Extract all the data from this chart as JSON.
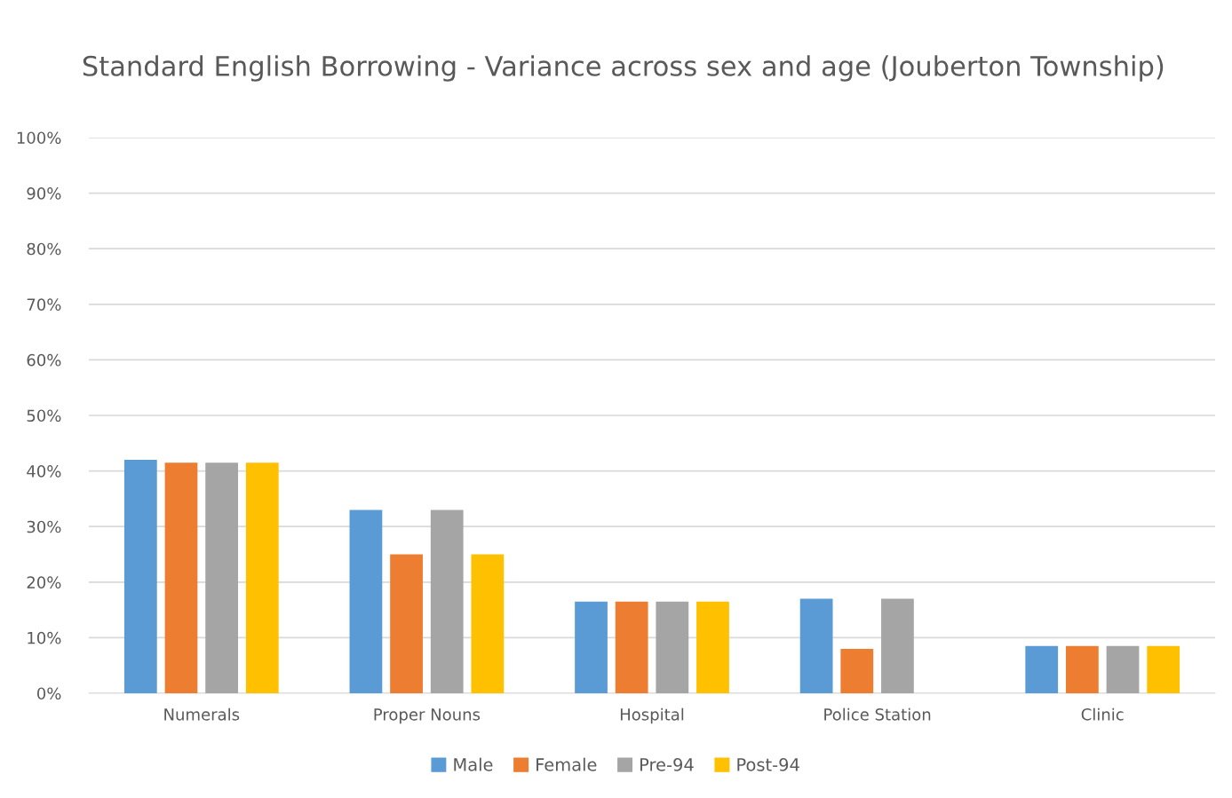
{
  "chart_data": {
    "type": "bar",
    "title": "Standard English Borrowing - Variance across sex and age (Jouberton Township)",
    "categories": [
      "Numerals",
      "Proper Nouns",
      "Hospital",
      "Police Station",
      "Clinic"
    ],
    "series": [
      {
        "name": "Male",
        "color": "#5b9bd5",
        "values": [
          42,
          33,
          16.5,
          17,
          8.5
        ]
      },
      {
        "name": "Female",
        "color": "#ed7d31",
        "values": [
          41.5,
          25,
          16.5,
          8,
          8.5
        ]
      },
      {
        "name": "Pre-94",
        "color": "#a5a5a5",
        "values": [
          41.5,
          33,
          16.5,
          17,
          8.5
        ]
      },
      {
        "name": "Post-94",
        "color": "#ffc000",
        "values": [
          41.5,
          25,
          16.5,
          0,
          8.5
        ]
      }
    ],
    "ylim": [
      0,
      100
    ],
    "yticks": [
      {
        "value": 0,
        "label": "0%"
      },
      {
        "value": 10,
        "label": "10%"
      },
      {
        "value": 20,
        "label": "20%"
      },
      {
        "value": 30,
        "label": "30%"
      },
      {
        "value": 40,
        "label": "40%"
      },
      {
        "value": 50,
        "label": "50%"
      },
      {
        "value": 60,
        "label": "60%"
      },
      {
        "value": 70,
        "label": "70%"
      },
      {
        "value": 80,
        "label": "80%"
      },
      {
        "value": 90,
        "label": "90%"
      },
      {
        "value": 100,
        "label": "100%"
      }
    ],
    "grid": "y",
    "legend": "bottom"
  }
}
